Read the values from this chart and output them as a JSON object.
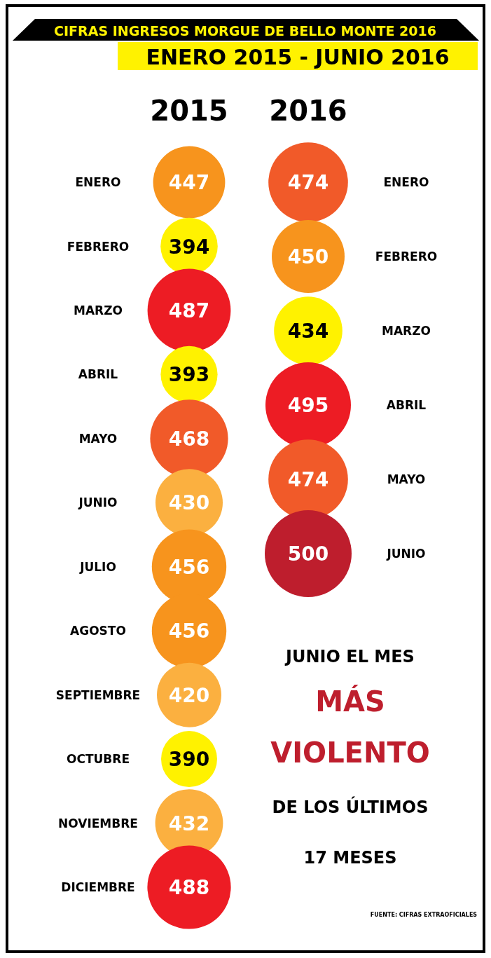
{
  "chart_data": {
    "type": "other",
    "title": "CIFRAS INGRESOS MORGUE DE BELLO MONTE 2016",
    "subtitle": "ENERO 2015 - JUNIO 2016",
    "data_labels": true,
    "categories": [
      "ENERO",
      "FEBRERO",
      "MARZO",
      "ABRIL",
      "MAYO",
      "JUNIO",
      "JULIO",
      "AGOSTO",
      "SEPTIEMBRE",
      "OCTUBRE",
      "NOVIEMBRE",
      "DICIEMBRE"
    ],
    "series": [
      {
        "name": "2015",
        "values": [
          447,
          394,
          487,
          393,
          468,
          430,
          456,
          456,
          420,
          390,
          432,
          488
        ],
        "colors": [
          "#f7941d",
          "#fff200",
          "#ed1c24",
          "#fff200",
          "#f15a29",
          "#fbb040",
          "#f7941d",
          "#f7941d",
          "#fbb040",
          "#fff200",
          "#fbb040",
          "#ed1c24"
        ]
      },
      {
        "name": "2016",
        "values": [
          474,
          450,
          434,
          495,
          474,
          500,
          null,
          null,
          null,
          null,
          null,
          null
        ],
        "colors": [
          "#f15a29",
          "#f7941d",
          "#fff200",
          "#ed1c24",
          "#f15a29",
          "#be1e2d",
          null,
          null,
          null,
          null,
          null,
          null
        ]
      }
    ],
    "annotations": [
      "JUNIO EL MES",
      "MÁS",
      "VIOLENTO",
      "DE LOS ÚLTIMOS",
      "17 MESES",
      "FUENTE: CIFRAS EXTRAOFICIALES"
    ]
  }
}
